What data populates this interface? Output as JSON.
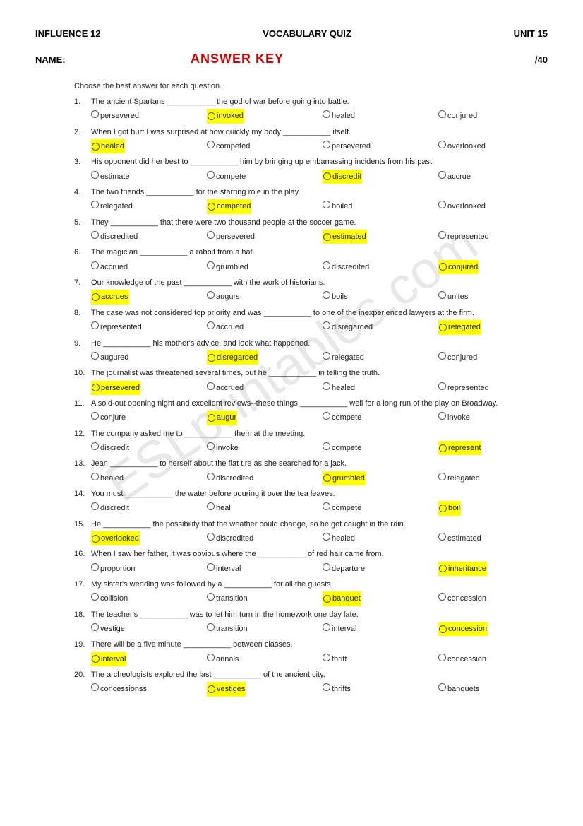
{
  "header": {
    "left": "INFLUENCE  12",
    "center": "VOCABULARY QUIZ",
    "right": "UNIT 15"
  },
  "nameRow": {
    "label": "NAME:",
    "key": "ANSWER KEY",
    "score": "/40"
  },
  "instructions": "Choose the best answer for each question.",
  "watermark": "ESLprintables.com",
  "questions": [
    {
      "n": "1.",
      "text": "The ancient Spartans ___________ the god of war before going into battle.",
      "opts": [
        "persevered",
        "invoked",
        "healed",
        "conjured"
      ],
      "ans": 1
    },
    {
      "n": "2.",
      "text": "When I got hurt I was surprised at how quickly my body ___________ itself.",
      "opts": [
        "healed",
        "competed",
        "persevered",
        "overlooked"
      ],
      "ans": 0
    },
    {
      "n": "3.",
      "text": "His opponent did her best to ___________ him by bringing up embarrassing incidents from his past.",
      "opts": [
        "estimate",
        "compete",
        "discredit",
        "accrue"
      ],
      "ans": 2
    },
    {
      "n": "4.",
      "text": "The two friends ___________ for the starring role in the play.",
      "opts": [
        "relegated",
        "competed",
        "boiled",
        "overlooked"
      ],
      "ans": 1
    },
    {
      "n": "5.",
      "text": "They ___________ that there were two thousand people at the soccer game.",
      "opts": [
        "discredited",
        "persevered",
        "estimated",
        "represented"
      ],
      "ans": 2
    },
    {
      "n": "6.",
      "text": "The magician ___________ a rabbit from a hat.",
      "opts": [
        "accrued",
        "grumbled",
        "discredited",
        "conjured"
      ],
      "ans": 3
    },
    {
      "n": "7.",
      "text": "Our knowledge of the past ___________ with the work of historians.",
      "opts": [
        "accrues",
        "augurs",
        "boils",
        "unites"
      ],
      "ans": 0
    },
    {
      "n": "8.",
      "text": "The case was not considered top priority and was ___________ to one of the inexperienced lawyers at the firm.",
      "opts": [
        "represented",
        "accrued",
        "disregarded",
        "relegated"
      ],
      "ans": 3
    },
    {
      "n": "9.",
      "text": "He ___________ his mother's advice, and look what happened.",
      "opts": [
        "augured",
        "disregarded",
        "relegated",
        "conjured"
      ],
      "ans": 1
    },
    {
      "n": "10.",
      "text": "The journalist was threatened several times, but he ___________ in telling the truth.",
      "opts": [
        "persevered",
        "accrued",
        "healed",
        "represented"
      ],
      "ans": 0
    },
    {
      "n": "11.",
      "text": "A sold-out opening night and excellent reviews--these things ___________ well for a long run of the play on Broadway.",
      "opts": [
        "conjure",
        "augur",
        "compete",
        "invoke"
      ],
      "ans": 1
    },
    {
      "n": "12.",
      "text": "The company asked me to ___________ them at the meeting.",
      "opts": [
        "discredit",
        "invoke",
        "compete",
        "represent"
      ],
      "ans": 3
    },
    {
      "n": "13.",
      "text": "Jean ___________ to herself about the flat tire as she searched for a jack.",
      "opts": [
        "healed",
        "discredited",
        "grumbled",
        "relegated"
      ],
      "ans": 2
    },
    {
      "n": "14.",
      "text": "You must ___________ the water before pouring it over the tea leaves.",
      "opts": [
        "discredit",
        "heal",
        "compete",
        "boil"
      ],
      "ans": 3
    },
    {
      "n": "15.",
      "text": "He ___________ the possibility that the weather could change, so he got caught in the rain.",
      "opts": [
        "overlooked",
        "discredited",
        "healed",
        "estimated"
      ],
      "ans": 0
    },
    {
      "n": "16.",
      "text": " When I saw her father, it was obvious where the ___________ of red hair came from.",
      "opts": [
        "proportion",
        "interval",
        "departure",
        "inheritance"
      ],
      "ans": 3
    },
    {
      "n": "17.",
      "text": "My sister's wedding was followed by a ___________ for all the guests.",
      "opts": [
        "collision",
        "transition",
        "banquet",
        "concession"
      ],
      "ans": 2
    },
    {
      "n": "18.",
      "text": "The teacher's ___________ was to let him turn in the homework one day late.",
      "opts": [
        "vestige",
        "transition",
        "interval",
        "concession"
      ],
      "ans": 3
    },
    {
      "n": "19.",
      "text": "There will be a five minute ___________ between classes.",
      "opts": [
        "interval",
        "annals",
        "thrift",
        "concession"
      ],
      "ans": 0
    },
    {
      "n": "20.",
      "text": "The archeologists explored the last ___________ of the ancient city.",
      "opts": [
        "concessionss",
        "vestiges",
        "thrifts",
        "banquets"
      ],
      "ans": 1
    }
  ]
}
